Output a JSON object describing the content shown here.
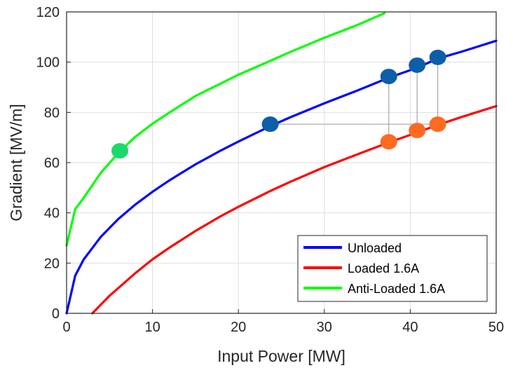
{
  "chart_data": {
    "type": "line",
    "xlabel": "Input Power [MW]",
    "ylabel": "Gradient [MV/m]",
    "xlim": [
      0,
      50
    ],
    "ylim": [
      0,
      120
    ],
    "xticks": [
      0,
      10,
      20,
      30,
      40,
      50
    ],
    "yticks": [
      0,
      20,
      40,
      60,
      80,
      100,
      120
    ],
    "grid": true,
    "legend_position": "bottom-right",
    "series": [
      {
        "name": "Unloaded",
        "color": "#0000ff",
        "x": [
          0,
          1,
          2,
          4,
          6,
          8,
          10,
          12,
          15,
          18,
          20,
          23.7,
          26,
          30,
          34,
          37.5,
          40.8,
          43.2,
          46,
          50
        ],
        "y": [
          0,
          15,
          21.5,
          30.5,
          37.5,
          43.3,
          48.4,
          53,
          59.3,
          64.9,
          68.4,
          74.5,
          78,
          83.6,
          88.9,
          93.8,
          97.8,
          101.4,
          104.2,
          108.5
        ]
      },
      {
        "name": "Loaded 1.6A",
        "color": "#ff0000",
        "x": [
          3,
          4,
          5,
          6,
          8,
          10,
          12,
          15,
          18,
          20,
          23.7,
          26,
          30,
          34,
          37.5,
          40.8,
          43.2,
          46,
          50
        ],
        "y": [
          0,
          3.5,
          7,
          10,
          16,
          21.5,
          26.2,
          32.8,
          38.8,
          42.4,
          48.7,
          52.3,
          58.2,
          63.5,
          68,
          72,
          75,
          78.2,
          82.5
        ]
      },
      {
        "name": "Anti-Loaded 1.6A",
        "color": "#00ff00",
        "x": [
          0,
          1,
          2,
          4,
          6.2,
          8,
          10,
          12,
          15,
          18,
          20,
          23.7,
          26,
          30,
          34,
          37
        ],
        "y": [
          27,
          41.5,
          46,
          56,
          64.5,
          70.3,
          75.5,
          80,
          86.5,
          91.6,
          95,
          100.5,
          104,
          109.7,
          115,
          119.5
        ]
      }
    ],
    "markers": [
      {
        "x": 23.7,
        "y": 75.3,
        "color": "#0d5ea8"
      },
      {
        "x": 37.5,
        "y": 94.3,
        "color": "#0d5ea8"
      },
      {
        "x": 40.8,
        "y": 98.8,
        "color": "#0d5ea8"
      },
      {
        "x": 43.2,
        "y": 101.9,
        "color": "#0d5ea8"
      },
      {
        "x": 37.5,
        "y": 68.3,
        "color": "#ff6a21"
      },
      {
        "x": 40.8,
        "y": 72.8,
        "color": "#ff6a21"
      },
      {
        "x": 43.2,
        "y": 75.3,
        "color": "#ff6a21"
      },
      {
        "x": 6.2,
        "y": 64.7,
        "color": "#1bd96b"
      }
    ],
    "connectors": [
      {
        "x": [
          23.7,
          43.2
        ],
        "y": [
          75.3,
          75.3
        ]
      },
      {
        "x": [
          37.5,
          37.5
        ],
        "y": [
          94.3,
          68.3
        ]
      },
      {
        "x": [
          40.8,
          40.8
        ],
        "y": [
          98.8,
          72.8
        ]
      },
      {
        "x": [
          43.2,
          43.2
        ],
        "y": [
          101.9,
          75.3
        ]
      }
    ]
  }
}
